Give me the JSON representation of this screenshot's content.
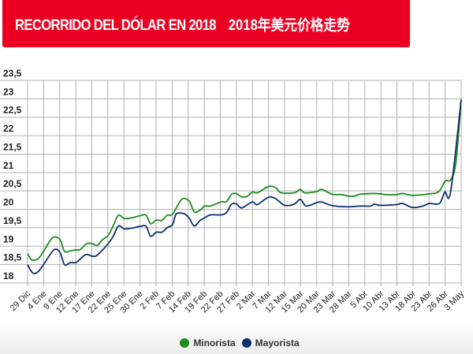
{
  "header": {
    "title_es": "RECORRIDO DEL DÓLAR EN 2018",
    "title_zh": "2018年美元价格走势"
  },
  "colors": {
    "header_bg": "#ec0022",
    "minorista": "#1f8a1f",
    "mayorista": "#0d2f6b",
    "grid": "#b0b0b0"
  },
  "chart_data": {
    "type": "line",
    "title": "RECORRIDO DEL DÓLAR EN 2018 2018年美元价格走势",
    "categories": [
      "29 Dic",
      "4 Ene",
      "9 Ene",
      "12 Ene",
      "17 Ene",
      "22 Ene",
      "25 Ene",
      "30 Ene",
      "2 Feb",
      "7 Feb",
      "14 Feb",
      "19 Feb",
      "22 Feb",
      "27 Feb",
      "2 Mar",
      "7 Mar",
      "12 Mar",
      "15 Mar",
      "20 Mar",
      "23 Mar",
      "28 Mar",
      "5 Abr",
      "10 Abr",
      "13 Abr",
      "18 Abr",
      "23 Abr",
      "26 Abr",
      "3 May"
    ],
    "yticks": [
      "18",
      "18,5",
      "19",
      "19,5",
      "20",
      "20,5",
      "21",
      "21,5",
      "22",
      "22,5",
      "23",
      "23,5"
    ],
    "ylim": [
      18,
      23.5
    ],
    "grid": true,
    "legend": "bottom",
    "series": [
      {
        "name": "Minorista",
        "points": [
          [
            0,
            18.8
          ],
          [
            0.25,
            18.63
          ],
          [
            0.66,
            18.66
          ],
          [
            1.02,
            18.88
          ],
          [
            1.56,
            19.23
          ],
          [
            2.02,
            19.18
          ],
          [
            2.3,
            18.86
          ],
          [
            2.7,
            18.88
          ],
          [
            3.03,
            18.9
          ],
          [
            3.28,
            18.91
          ],
          [
            3.69,
            19.07
          ],
          [
            4.02,
            19.07
          ],
          [
            4.34,
            19.02
          ],
          [
            4.67,
            19.18
          ],
          [
            5,
            19.28
          ],
          [
            5.33,
            19.55
          ],
          [
            5.66,
            19.84
          ],
          [
            6.02,
            19.75
          ],
          [
            6.48,
            19.77
          ],
          [
            7.02,
            19.83
          ],
          [
            7.38,
            19.84
          ],
          [
            7.66,
            19.61
          ],
          [
            8.02,
            19.71
          ],
          [
            8.36,
            19.7
          ],
          [
            8.69,
            19.84
          ],
          [
            9.03,
            19.87
          ],
          [
            9.59,
            20.27
          ],
          [
            10.05,
            20.23
          ],
          [
            10.38,
            19.93
          ],
          [
            10.74,
            19.98
          ],
          [
            11.03,
            20.09
          ],
          [
            11.39,
            20.09
          ],
          [
            12.02,
            20.2
          ],
          [
            12.38,
            20.21
          ],
          [
            12.7,
            20.41
          ],
          [
            13,
            20.43
          ],
          [
            13.33,
            20.34
          ],
          [
            13.65,
            20.35
          ],
          [
            14.01,
            20.47
          ],
          [
            14.31,
            20.45
          ],
          [
            15,
            20.62
          ],
          [
            15.45,
            20.59
          ],
          [
            15.78,
            20.45
          ],
          [
            16.6,
            20.45
          ],
          [
            16.98,
            20.54
          ],
          [
            17.26,
            20.45
          ],
          [
            17.99,
            20.48
          ],
          [
            18.32,
            20.54
          ],
          [
            18.97,
            20.41
          ],
          [
            19.55,
            20.4
          ],
          [
            19.99,
            20.36
          ],
          [
            20.36,
            20.36
          ],
          [
            20.69,
            20.41
          ],
          [
            21.51,
            20.43
          ],
          [
            21.97,
            20.42
          ],
          [
            22.33,
            20.4
          ],
          [
            22.98,
            20.4
          ],
          [
            23.34,
            20.43
          ],
          [
            23.97,
            20.38
          ],
          [
            25,
            20.42
          ],
          [
            25.6,
            20.48
          ],
          [
            26.01,
            20.77
          ],
          [
            26.34,
            20.8
          ],
          [
            26.67,
            21.27
          ],
          [
            27,
            22.98
          ]
        ]
      },
      {
        "name": "Mayorista",
        "points": [
          [
            0,
            18.5
          ],
          [
            0.33,
            18.27
          ],
          [
            0.66,
            18.31
          ],
          [
            1.02,
            18.52
          ],
          [
            1.64,
            18.9
          ],
          [
            2.02,
            18.83
          ],
          [
            2.3,
            18.5
          ],
          [
            2.7,
            18.56
          ],
          [
            3.03,
            18.56
          ],
          [
            3.61,
            18.77
          ],
          [
            4.02,
            18.73
          ],
          [
            4.34,
            18.76
          ],
          [
            5,
            19.06
          ],
          [
            5.33,
            19.27
          ],
          [
            5.66,
            19.55
          ],
          [
            6.02,
            19.47
          ],
          [
            6.48,
            19.49
          ],
          [
            7.02,
            19.54
          ],
          [
            7.38,
            19.54
          ],
          [
            7.66,
            19.27
          ],
          [
            8.02,
            19.38
          ],
          [
            8.36,
            19.38
          ],
          [
            8.69,
            19.5
          ],
          [
            9.03,
            19.59
          ],
          [
            9.26,
            19.88
          ],
          [
            9.75,
            19.88
          ],
          [
            10.05,
            19.77
          ],
          [
            10.38,
            19.55
          ],
          [
            10.74,
            19.7
          ],
          [
            11.03,
            19.77
          ],
          [
            11.39,
            19.85
          ],
          [
            12.02,
            19.85
          ],
          [
            12.38,
            19.91
          ],
          [
            12.7,
            20.14
          ],
          [
            13,
            20.15
          ],
          [
            13.33,
            20.04
          ],
          [
            13.98,
            20.2
          ],
          [
            14.31,
            20.13
          ],
          [
            15,
            20.33
          ],
          [
            15.45,
            20.29
          ],
          [
            16,
            20.11
          ],
          [
            16.6,
            20.14
          ],
          [
            16.98,
            20.27
          ],
          [
            17.29,
            20.1
          ],
          [
            17.58,
            20.11
          ],
          [
            17.99,
            20.18
          ],
          [
            18.32,
            20.2
          ],
          [
            18.97,
            20.1
          ],
          [
            19.99,
            20.07
          ],
          [
            20.69,
            20.09
          ],
          [
            21.35,
            20.09
          ],
          [
            21.59,
            20.14
          ],
          [
            21.97,
            20.11
          ],
          [
            22.98,
            20.13
          ],
          [
            23.34,
            20.16
          ],
          [
            23.97,
            20.05
          ],
          [
            24.62,
            20.09
          ],
          [
            25,
            20.16
          ],
          [
            25.65,
            20.16
          ],
          [
            25.98,
            20.47
          ],
          [
            26.34,
            20.47
          ],
          [
            27,
            22.98
          ]
        ]
      }
    ]
  }
}
